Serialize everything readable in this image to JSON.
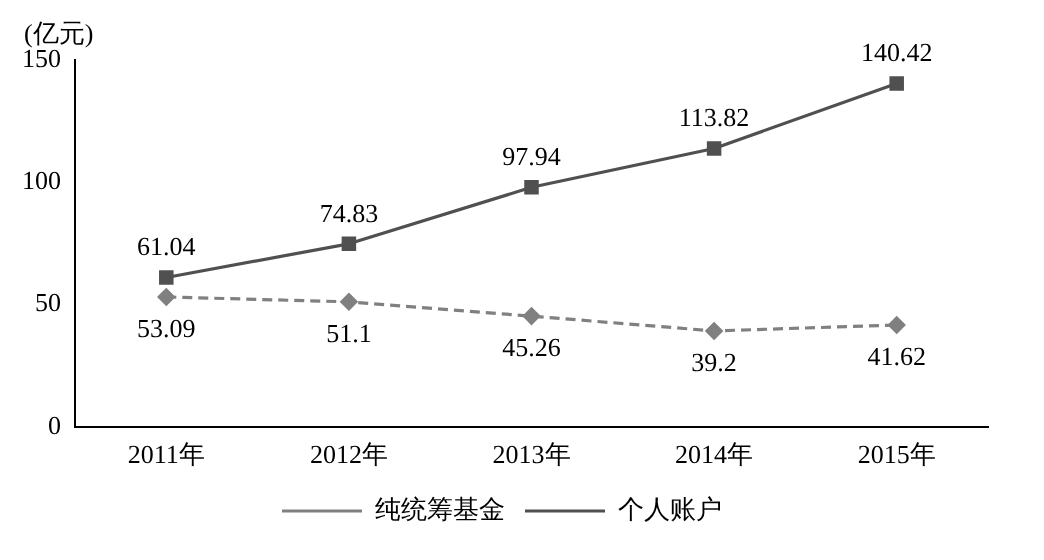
{
  "chart_data": {
    "type": "line",
    "ylabel": "(亿元)",
    "categories": [
      "2011年",
      "2012年",
      "2013年",
      "2014年",
      "2015年"
    ],
    "series": [
      {
        "name": "纯统筹基金",
        "color": "#808080",
        "values": [
          53.09,
          51.1,
          45.26,
          39.2,
          41.62
        ],
        "line_style": "dashed",
        "marker": "diamond"
      },
      {
        "name": "个人账户",
        "color": "#505050",
        "values": [
          61.04,
          74.83,
          97.94,
          113.82,
          140.42
        ],
        "line_style": "solid",
        "marker": "square"
      }
    ],
    "ylim": [
      0,
      150
    ],
    "yticks": [
      0,
      50,
      100,
      150
    ],
    "grid": false,
    "legend": "bottom",
    "data_labels": true
  }
}
